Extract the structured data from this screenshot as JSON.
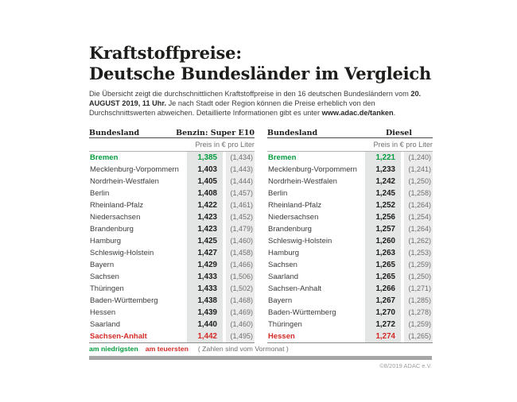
{
  "page": {
    "title_line1": "Kraftstoffpreise:",
    "title_line2": "Deutsche Bundesländer im Vergleich",
    "intro": {
      "t1": "Die Übersicht zeigt die durchschnittlichen Kraftstoffpreise in den 16 deutschen Bundesländern vom ",
      "b1": "20. AUGUST 2019, 11 Uhr.",
      "t2": " Je nach Stadt oder Region können die Preise erheblich von den Durchschnittswerten abweichen. Detaillierte Informationen gibt es unter ",
      "b2": "www.adac.de/tanken",
      "t3": "."
    }
  },
  "chart_data": [
    {
      "type": "table",
      "bundesland_header": "Bundesland",
      "fuel_label": "Benzin: Super E10",
      "unit_label": "Preis in € pro Liter",
      "note": "values in parentheses are previous month, German decimal comma",
      "rows": [
        {
          "name": "Bremen",
          "price": "1,385",
          "prev": "(1,434)",
          "status": "lowest"
        },
        {
          "name": "Mecklenburg-Vorpommern",
          "price": "1,403",
          "prev": "(1,443)",
          "status": "normal"
        },
        {
          "name": "Nordrhein-Westfalen",
          "price": "1,405",
          "prev": "(1,444)",
          "status": "normal"
        },
        {
          "name": "Berlin",
          "price": "1,408",
          "prev": "(1,457)",
          "status": "normal"
        },
        {
          "name": "Rheinland-Pfalz",
          "price": "1,422",
          "prev": "(1,461)",
          "status": "normal"
        },
        {
          "name": "Niedersachsen",
          "price": "1,423",
          "prev": "(1,452)",
          "status": "normal"
        },
        {
          "name": "Brandenburg",
          "price": "1,423",
          "prev": "(1,479)",
          "status": "normal"
        },
        {
          "name": "Hamburg",
          "price": "1,425",
          "prev": "(1,460)",
          "status": "normal"
        },
        {
          "name": "Schleswig-Holstein",
          "price": "1,427",
          "prev": "(1,458)",
          "status": "normal"
        },
        {
          "name": "Bayern",
          "price": "1,429",
          "prev": "(1,466)",
          "status": "normal"
        },
        {
          "name": "Sachsen",
          "price": "1,433",
          "prev": "(1,506)",
          "status": "normal"
        },
        {
          "name": "Thüringen",
          "price": "1,433",
          "prev": "(1,502)",
          "status": "normal"
        },
        {
          "name": "Baden-Württemberg",
          "price": "1,438",
          "prev": "(1,468)",
          "status": "normal"
        },
        {
          "name": "Hessen",
          "price": "1,439",
          "prev": "(1,469)",
          "status": "normal"
        },
        {
          "name": "Saarland",
          "price": "1,440",
          "prev": "(1,460)",
          "status": "normal"
        },
        {
          "name": "Sachsen-Anhalt",
          "price": "1,442",
          "prev": "(1,495)",
          "status": "highest"
        }
      ]
    },
    {
      "type": "table",
      "bundesland_header": "Bundesland",
      "fuel_label": "Diesel",
      "unit_label": "Preis in € pro Liter",
      "note": "values in parentheses are previous month, German decimal comma",
      "rows": [
        {
          "name": "Bremen",
          "price": "1,221",
          "prev": "(1,240)",
          "status": "lowest"
        },
        {
          "name": "Mecklenburg-Vorpommern",
          "price": "1,233",
          "prev": "(1,241)",
          "status": "normal"
        },
        {
          "name": "Nordrhein-Westfalen",
          "price": "1,242",
          "prev": "(1,250)",
          "status": "normal"
        },
        {
          "name": "Berlin",
          "price": "1,245",
          "prev": "(1,258)",
          "status": "normal"
        },
        {
          "name": "Rheinland-Pfalz",
          "price": "1,252",
          "prev": "(1,264)",
          "status": "normal"
        },
        {
          "name": "Niedersachsen",
          "price": "1,256",
          "prev": "(1,254)",
          "status": "normal"
        },
        {
          "name": "Brandenburg",
          "price": "1,257",
          "prev": "(1,264)",
          "status": "normal"
        },
        {
          "name": "Schleswig-Holstein",
          "price": "1,260",
          "prev": "(1,262)",
          "status": "normal"
        },
        {
          "name": "Hamburg",
          "price": "1,263",
          "prev": "(1,253)",
          "status": "normal"
        },
        {
          "name": "Sachsen",
          "price": "1,265",
          "prev": "(1,259)",
          "status": "normal"
        },
        {
          "name": "Saarland",
          "price": "1,265",
          "prev": "(1,250)",
          "status": "normal"
        },
        {
          "name": "Sachsen-Anhalt",
          "price": "1,266",
          "prev": "(1,271)",
          "status": "normal"
        },
        {
          "name": "Bayern",
          "price": "1,267",
          "prev": "(1,285)",
          "status": "normal"
        },
        {
          "name": "Baden-Württemberg",
          "price": "1,270",
          "prev": "(1,278)",
          "status": "normal"
        },
        {
          "name": "Thüringen",
          "price": "1,272",
          "prev": "(1,259)",
          "status": "normal"
        },
        {
          "name": "Hessen",
          "price": "1,274",
          "prev": "(1,265)",
          "status": "highest"
        }
      ]
    }
  ],
  "legend": {
    "lowest_label": "am niedrigsten",
    "highest_label": "am teuersten",
    "note": "( Zahlen sind vom Vormonat )"
  },
  "footer": {
    "copyright": "©8/2019 ADAC e.V."
  },
  "colors": {
    "lowest_green": "#009c3d",
    "highest_red": "#d42a26",
    "price_col_bg": "#e4e6e5",
    "prev_col_bg": "#eaebea",
    "divider_bar": "#a6a6a6",
    "text_dark": "#1d1d1b",
    "text_gray": "#706f6e"
  }
}
